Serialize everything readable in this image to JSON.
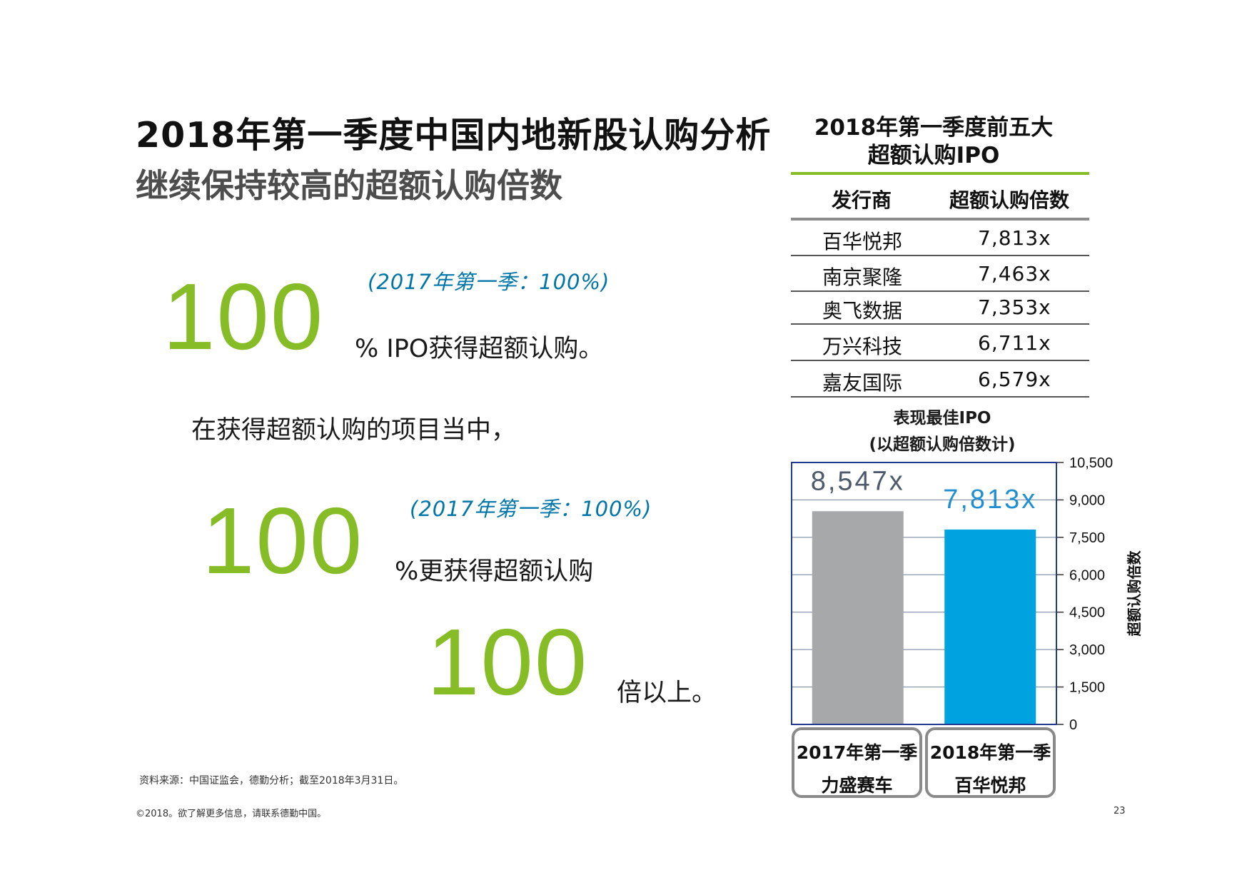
{
  "header": {
    "title": "2018年第一季度中国内地新股认购分析",
    "subtitle": "继续保持较高的超额认购倍数"
  },
  "stats": [
    {
      "value": "100",
      "note": "(2017年第一季：100%)",
      "text": "% IPO获得超额认购。"
    },
    {
      "lead": "在获得超额认购的项目当中，"
    },
    {
      "value": "100",
      "note": "(2017年第一季：100%)",
      "text": "%更获得超额认购"
    },
    {
      "value": "100",
      "text": "倍以上。"
    }
  ],
  "top5_table": {
    "title_line1": "2018年第一季度前五大",
    "title_line2": "超额认购IPO",
    "columns": [
      "发行商",
      "超额认购倍数"
    ],
    "rows": [
      {
        "issuer": "百华悦邦",
        "multiple": "7,813x"
      },
      {
        "issuer": "南京聚隆",
        "multiple": "7,463x"
      },
      {
        "issuer": "奥飞数据",
        "multiple": "7,353x"
      },
      {
        "issuer": "万兴科技",
        "multiple": "6,711x"
      },
      {
        "issuer": "嘉友国际",
        "multiple": "6,579x"
      }
    ]
  },
  "chart_data": {
    "type": "bar",
    "title": "表现最佳IPO",
    "subtitle": "(以超额认购倍数计)",
    "categories": [
      "2017年第一季 力盛赛车",
      "2018年第一季 百华悦邦"
    ],
    "category_lines": [
      [
        "2017年第一季",
        "力盛赛车"
      ],
      [
        "2018年第一季",
        "百华悦邦"
      ]
    ],
    "values": [
      8547,
      7813
    ],
    "data_labels": [
      "8,547x",
      "7,813x"
    ],
    "bar_colors": [
      "#a7a8aa",
      "#00a3e0"
    ],
    "label_colors": [
      "#4d5a6b",
      "#1f8fd1"
    ],
    "ylabel": "超额认购倍数",
    "ylim": [
      0,
      10500
    ],
    "yticks": [
      0,
      1500,
      3000,
      4500,
      6000,
      7500,
      9000,
      10500
    ],
    "ytick_labels": [
      "0",
      "1,500",
      "3,000",
      "4,500",
      "6,000",
      "7,500",
      "9,000",
      "10,500"
    ],
    "y_axis_side": "right",
    "grid": true,
    "frame_color": "#1f3a8f"
  },
  "footer": {
    "source": "资料来源：中国证监会，德勤分析；截至2018年3月31日。",
    "copyright": "©2018。欲了解更多信息，请联系德勤中国。",
    "page_number": "23"
  },
  "colors": {
    "accent_green": "#86bc25",
    "note_blue": "#0076a8"
  }
}
